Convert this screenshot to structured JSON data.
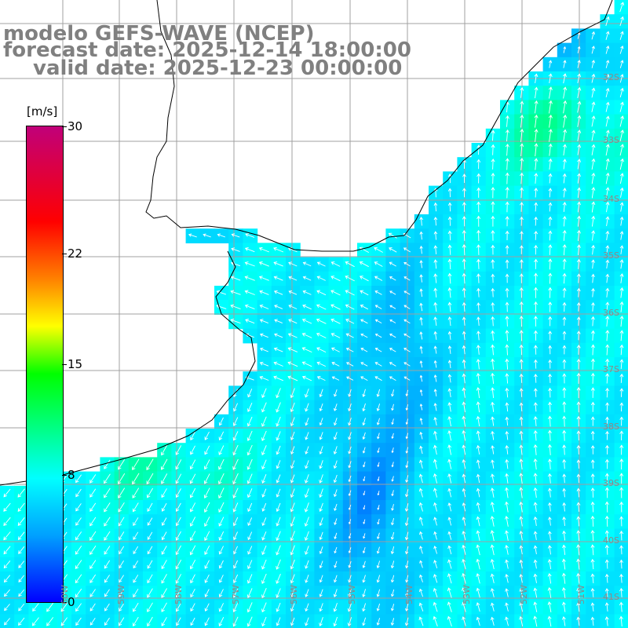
{
  "title": {
    "model": "modelo GEFS-WAVE (NCEP)",
    "forecast": "forecast date: 2025-12-14 18:00:00",
    "valid": "valid date: 2025-12-23 00:00:00"
  },
  "colorbar": {
    "units": "[m/s]",
    "min": 0,
    "max": 30,
    "ticks": [
      {
        "value": 30,
        "label": "30"
      },
      {
        "value": 22,
        "label": "22"
      },
      {
        "value": 15,
        "label": "15"
      },
      {
        "value": 8,
        "label": "8"
      },
      {
        "value": 0,
        "label": "0"
      }
    ],
    "colors": [
      "#0000ff",
      "#00a0ff",
      "#00ffff",
      "#00ff00",
      "#ffff00",
      "#ff8000",
      "#ff0000",
      "#c0007a"
    ]
  },
  "map": {
    "projection": "lat-lon",
    "lon_range": [
      -60,
      -49
    ],
    "lat_range": [
      -41,
      -30
    ],
    "lat_labels": [
      "32S",
      "33S",
      "34S",
      "35S",
      "36S",
      "37S",
      "38S",
      "39S",
      "40S",
      "41S"
    ],
    "lon_labels": [
      "60W",
      "59W",
      "58W",
      "57W",
      "56W",
      "55W",
      "54W",
      "53W",
      "52W",
      "51W"
    ],
    "wind_field_summary": "wind arrows over ocean, blue to cyan/green speeds",
    "colors": {
      "land": "#ffffff",
      "coast": "#000000",
      "grid": "#a0a0a0",
      "arrow": "#ffffff"
    }
  }
}
